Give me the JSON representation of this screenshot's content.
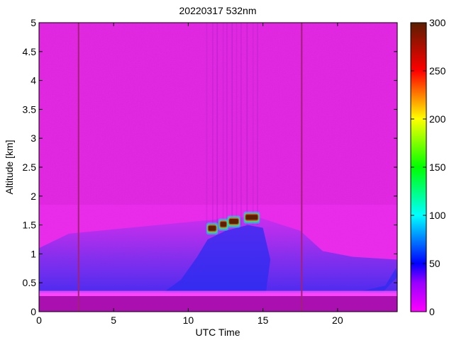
{
  "chart_data": {
    "type": "heatmap",
    "title": "20220317 532nm",
    "xlabel": "UTC Time",
    "ylabel": "Altitude [km]",
    "xlim": [
      0,
      24
    ],
    "ylim": [
      0,
      5
    ],
    "x_ticks": [
      {
        "value": 0,
        "label": "0"
      },
      {
        "value": 5,
        "label": "5"
      },
      {
        "value": 10,
        "label": "10"
      },
      {
        "value": 15,
        "label": "15"
      },
      {
        "value": 20,
        "label": "20"
      }
    ],
    "y_ticks": [
      {
        "value": 0,
        "label": "0"
      },
      {
        "value": 0.5,
        "label": "0.5"
      },
      {
        "value": 1,
        "label": "1"
      },
      {
        "value": 1.5,
        "label": "1.5"
      },
      {
        "value": 2,
        "label": "2"
      },
      {
        "value": 2.5,
        "label": "2.5"
      },
      {
        "value": 3,
        "label": "3"
      },
      {
        "value": 3.5,
        "label": "3.5"
      },
      {
        "value": 4,
        "label": "4"
      },
      {
        "value": 4.5,
        "label": "4.5"
      },
      {
        "value": 5,
        "label": "5"
      }
    ],
    "colorbar": {
      "range": [
        0,
        300
      ],
      "ticks": [
        {
          "value": 0,
          "label": "0"
        },
        {
          "value": 50,
          "label": "50"
        },
        {
          "value": 100,
          "label": "100"
        },
        {
          "value": 150,
          "label": "150"
        },
        {
          "value": 200,
          "label": "200"
        },
        {
          "value": 250,
          "label": "250"
        },
        {
          "value": 300,
          "label": "300"
        }
      ],
      "stops": [
        {
          "value": 0,
          "color": "#ff00ff"
        },
        {
          "value": 30,
          "color": "#9900ff"
        },
        {
          "value": 50,
          "color": "#0000ff"
        },
        {
          "value": 100,
          "color": "#00ffff"
        },
        {
          "value": 150,
          "color": "#00ff00"
        },
        {
          "value": 200,
          "color": "#ffff00"
        },
        {
          "value": 250,
          "color": "#ff0000"
        },
        {
          "value": 300,
          "color": "#5a1e00"
        }
      ]
    },
    "data_gaps_utc": [
      2.65,
      17.6
    ],
    "boundary_layer_top_km": [
      {
        "utc": 0,
        "km": 1.1
      },
      {
        "utc": 2,
        "km": 1.35
      },
      {
        "utc": 6,
        "km": 1.45
      },
      {
        "utc": 10,
        "km": 1.55
      },
      {
        "utc": 12,
        "km": 1.6
      },
      {
        "utc": 14.5,
        "km": 1.65
      },
      {
        "utc": 17.5,
        "km": 1.4
      },
      {
        "utc": 19,
        "km": 1.05
      },
      {
        "utc": 21,
        "km": 0.95
      },
      {
        "utc": 24,
        "km": 0.9
      }
    ],
    "cloud_segments": [
      {
        "utc_start": 11.3,
        "utc_end": 11.9,
        "km": 1.43
      },
      {
        "utc_start": 12.1,
        "utc_end": 12.6,
        "km": 1.5
      },
      {
        "utc_start": 12.7,
        "utc_end": 13.4,
        "km": 1.55
      },
      {
        "utc_start": 13.8,
        "utc_end": 14.7,
        "km": 1.62
      }
    ],
    "colors": {
      "background": "#e628e6",
      "background_low": "#ee2ef0",
      "surface_band": "#aa10b0",
      "boundary_layer": "#8c28e8",
      "aerosol_dense": "#2a2cf0",
      "gap_line": "#a0207a"
    }
  }
}
